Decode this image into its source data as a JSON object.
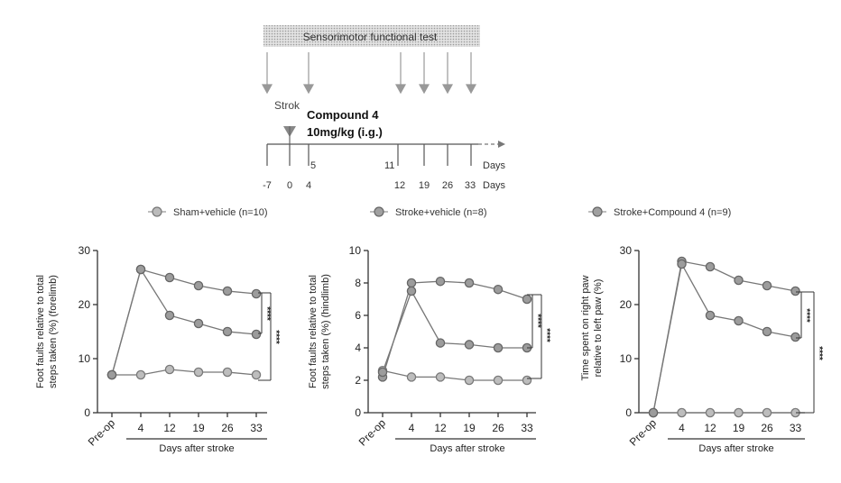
{
  "timeline": {
    "test_label": "Sensorimotor functional test",
    "stroke_label": "Strok",
    "compound_line1": "Compound 4",
    "compound_line2": "10mg/kg  (i.g.)",
    "upper_ticks": [
      "5",
      "11"
    ],
    "upper_unit": "Days",
    "day_labels": [
      "-7",
      "0",
      "4",
      "12",
      "19",
      "26",
      "33"
    ],
    "lower_unit": "Days"
  },
  "legend": [
    {
      "label": "Sham+vehicle (n=10)",
      "color": "#a6a6a6"
    },
    {
      "label": "Stroke+vehicle (n=8)",
      "color": "#8c8c8c"
    },
    {
      "label": "Stroke+Compound 4  (n=9)",
      "color": "#8c8c8c"
    }
  ],
  "chart_data": [
    {
      "type": "line",
      "ylabel_line1": "Foot faults relative to total",
      "ylabel_line2": "steps taken (%) (forelimb)",
      "xlabel": "Days after stroke",
      "categories": [
        "Pre-op",
        "4",
        "12",
        "19",
        "26",
        "33"
      ],
      "ylim": [
        0,
        30
      ],
      "yticks": [
        "0",
        "10",
        "20",
        "30"
      ],
      "series": [
        {
          "values": [
            7,
            7,
            8,
            7.5,
            7.5,
            7
          ]
        },
        {
          "values": [
            7,
            26.5,
            25,
            23.5,
            22.5,
            22
          ]
        },
        {
          "values": [
            7,
            26.5,
            18,
            16.5,
            15,
            14.5
          ]
        }
      ],
      "significance": [
        "****",
        "****"
      ]
    },
    {
      "type": "line",
      "ylabel_line1": "Foot faults relative to total",
      "ylabel_line2": "steps taken (%) (hindlimb)",
      "xlabel": "Days after stroke",
      "categories": [
        "Pre-op",
        "4",
        "12",
        "19",
        "26",
        "33"
      ],
      "ylim": [
        0,
        10
      ],
      "yticks": [
        "0",
        "2",
        "4",
        "6",
        "8",
        "10"
      ],
      "series": [
        {
          "values": [
            2.6,
            2.2,
            2.2,
            2,
            2,
            2
          ]
        },
        {
          "values": [
            2.2,
            8,
            8.1,
            8,
            7.6,
            7
          ]
        },
        {
          "values": [
            2.5,
            7.5,
            4.3,
            4.2,
            4,
            4
          ]
        }
      ],
      "significance": [
        "****",
        "****"
      ]
    },
    {
      "type": "line",
      "ylabel_line1": "Time spent on right paw",
      "ylabel_line2": "relative to left paw (%)",
      "xlabel": "Days after stroke",
      "categories": [
        "Pre-op",
        "4",
        "12",
        "19",
        "26",
        "33"
      ],
      "ylim": [
        0,
        30
      ],
      "yticks": [
        "0",
        "10",
        "20",
        "30"
      ],
      "series": [
        {
          "values": [
            0,
            0,
            0,
            0,
            0,
            0
          ]
        },
        {
          "values": [
            0,
            28,
            27,
            24.5,
            23.5,
            22.5
          ]
        },
        {
          "values": [
            0,
            27.5,
            18,
            17,
            15,
            14
          ]
        }
      ],
      "significance": [
        "****",
        "****"
      ]
    }
  ]
}
